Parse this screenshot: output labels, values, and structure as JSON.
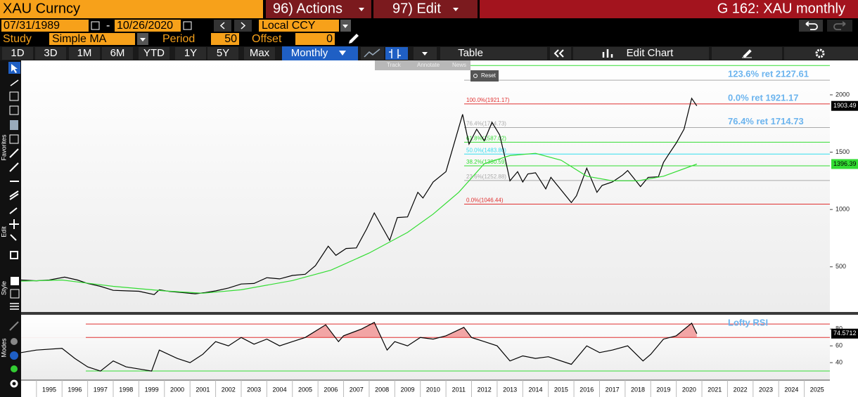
{
  "header": {
    "security": "XAU Curncy",
    "actions": "96) Actions",
    "edit": "97) Edit",
    "title": "G 162: XAU monthly"
  },
  "controls": {
    "start_date": "07/31/1989",
    "separator": "-",
    "end_date": "10/26/2020",
    "currency": "Local CCY",
    "study_label": "Study",
    "study": "Simple MA",
    "period_label": "Period",
    "period": 50,
    "offset_label": "Offset",
    "offset": 0
  },
  "periods": [
    "1D",
    "3D",
    "1M",
    "6M",
    "YTD",
    "1Y",
    "5Y",
    "Max"
  ],
  "frequency": "Monthly",
  "table": "Table",
  "edit_chart": "Edit Chart",
  "chart_tools": [
    "Track",
    "Annotate",
    "News",
    "Reset"
  ],
  "left_toolbar": [
    "Favorites",
    "Edit",
    "Style",
    "Modes"
  ],
  "chart_data": [
    {
      "type": "line",
      "xlim": [
        1994.4,
        2026.0
      ],
      "ylim": [
        100,
        2300
      ],
      "yticks": [
        500,
        1000,
        1500,
        2000
      ],
      "series": [
        {
          "color": "#000000",
          "x": [
            1994.4,
            1995.0,
            1995.5,
            1996.1,
            1996.6,
            1997.0,
            1997.5,
            1998.0,
            1998.6,
            1999.0,
            1999.6,
            1999.8,
            2000.2,
            2000.7,
            2001.2,
            2001.6,
            2002.0,
            2002.5,
            2003.0,
            2003.5,
            2004.0,
            2004.5,
            2005.0,
            2005.5,
            2005.9,
            2006.4,
            2006.7,
            2007.1,
            2007.5,
            2007.9,
            2008.2,
            2008.8,
            2009.1,
            2009.5,
            2009.9,
            2010.1,
            2010.5,
            2011.0,
            2011.3,
            2011.65,
            2011.9,
            2012.2,
            2012.5,
            2012.8,
            2013.1,
            2013.3,
            2013.5,
            2013.8,
            2014.0,
            2014.2,
            2014.5,
            2014.9,
            2015.1,
            2015.5,
            2015.9,
            2016.1,
            2016.5,
            2016.9,
            2017.1,
            2017.5,
            2017.9,
            2018.1,
            2018.6,
            2018.9,
            2019.3,
            2019.5,
            2019.7,
            2020.0,
            2020.3,
            2020.6,
            2020.8
          ],
          "values": [
            385,
            378,
            385,
            410,
            385,
            355,
            330,
            295,
            290,
            287,
            258,
            300,
            285,
            275,
            265,
            275,
            290,
            315,
            350,
            355,
            405,
            395,
            425,
            435,
            510,
            680,
            600,
            660,
            665,
            830,
            970,
            730,
            930,
            935,
            1150,
            1100,
            1240,
            1330,
            1560,
            1830,
            1570,
            1700,
            1600,
            1760,
            1650,
            1460,
            1250,
            1330,
            1240,
            1310,
            1320,
            1180,
            1280,
            1170,
            1060,
            1120,
            1360,
            1150,
            1210,
            1240,
            1300,
            1340,
            1200,
            1280,
            1285,
            1410,
            1480,
            1580,
            1700,
            1970,
            1903.49
          ]
        },
        {
          "color": "#33dd33",
          "x": [
            1994.4,
            1996.0,
            1998.0,
            2000.0,
            2001.5,
            2003.0,
            2005.0,
            2006.5,
            2008.0,
            2009.5,
            2010.5,
            2011.5,
            2012.5,
            2013.5,
            2014.5,
            2015.5,
            2016.5,
            2017.5,
            2018.5,
            2019.5,
            2020.8
          ],
          "values": [
            375,
            385,
            330,
            290,
            270,
            300,
            380,
            470,
            620,
            800,
            960,
            1150,
            1400,
            1470,
            1490,
            1430,
            1290,
            1250,
            1250,
            1290,
            1396.39
          ]
        }
      ],
      "levels": [
        {
          "value": 2255.31,
          "color": "#33dd33"
        },
        {
          "value": 2127.61,
          "color": "#aaaaaa"
        },
        {
          "label": "100.0%(1921.17)",
          "value": 1921.17,
          "color": "#e03030"
        },
        {
          "label": "76.4%(1714.73)",
          "value": 1714.73,
          "color": "#aaaaaa"
        },
        {
          "label": "61.8%(1587.02)",
          "value": 1587.02,
          "color": "#33dd33"
        },
        {
          "label": "50.0%(1483.80)",
          "value": 1483.8,
          "color": "#33ddee"
        },
        {
          "label": "38.2%(1380.59)",
          "value": 1380.59,
          "color": "#33dd33"
        },
        {
          "label": "23.6%(1252.88)",
          "value": 1252.88,
          "color": "#aaaaaa"
        },
        {
          "label": "0.0%(1046.44)",
          "value": 1046.44,
          "color": "#e03030"
        }
      ],
      "annotations": [
        {
          "text": "123.6% ret 2127.61",
          "value": 2127.61
        },
        {
          "text": "0.0% ret 1921.17",
          "value": 1921.17
        },
        {
          "text": "76.4% ret 1714.73",
          "value": 1714.73
        }
      ]
    },
    {
      "type": "line",
      "xlim": [
        1994.4,
        2026.0
      ],
      "xticks": [
        1995,
        1996,
        1997,
        1998,
        1999,
        2000,
        2001,
        2002,
        2003,
        2004,
        2005,
        2006,
        2007,
        2008,
        2009,
        2010,
        2011,
        2012,
        2013,
        2014,
        2015,
        2016,
        2017,
        2018,
        2019,
        2020,
        2021,
        2022,
        2023,
        2024,
        2025
      ],
      "ylim": [
        20,
        97
      ],
      "yticks": [
        40,
        60,
        80
      ],
      "shade_above": 70,
      "shade_color": "#f2a5a5",
      "levels": [
        {
          "value": 86,
          "color": "#e03030"
        },
        {
          "value": 70,
          "color": "#e03030"
        },
        {
          "value": 30,
          "color": "#33dd33"
        }
      ],
      "annotations": [
        {
          "text": "Lofty RSI",
          "value": 80
        }
      ],
      "series": [
        {
          "color": "#000000",
          "x": [
            1994.4,
            1995.0,
            1996.0,
            1996.5,
            1997.0,
            1997.5,
            1998.0,
            1998.5,
            1999.5,
            1999.8,
            2000.5,
            2001.0,
            2001.5,
            2002.0,
            2002.5,
            2003.0,
            2003.5,
            2004.0,
            2004.5,
            2005.0,
            2005.5,
            2006.3,
            2006.8,
            2007.0,
            2007.7,
            2008.2,
            2008.7,
            2009.0,
            2009.5,
            2010.0,
            2010.5,
            2011.0,
            2011.7,
            2012.0,
            2012.5,
            2013.0,
            2013.5,
            2014.0,
            2014.5,
            2015.0,
            2015.9,
            2016.5,
            2017.0,
            2017.5,
            2018.1,
            2018.7,
            2019.0,
            2019.5,
            2020.0,
            2020.6,
            2020.8
          ],
          "values": [
            52,
            55,
            57,
            45,
            35,
            30,
            42,
            35,
            30,
            55,
            45,
            40,
            50,
            65,
            60,
            70,
            62,
            68,
            60,
            65,
            70,
            85,
            65,
            72,
            80,
            88,
            55,
            65,
            60,
            70,
            68,
            72,
            82,
            70,
            65,
            60,
            42,
            48,
            45,
            47,
            38,
            60,
            52,
            55,
            60,
            42,
            50,
            68,
            72,
            87,
            74.5712
          ]
        }
      ]
    }
  ]
}
